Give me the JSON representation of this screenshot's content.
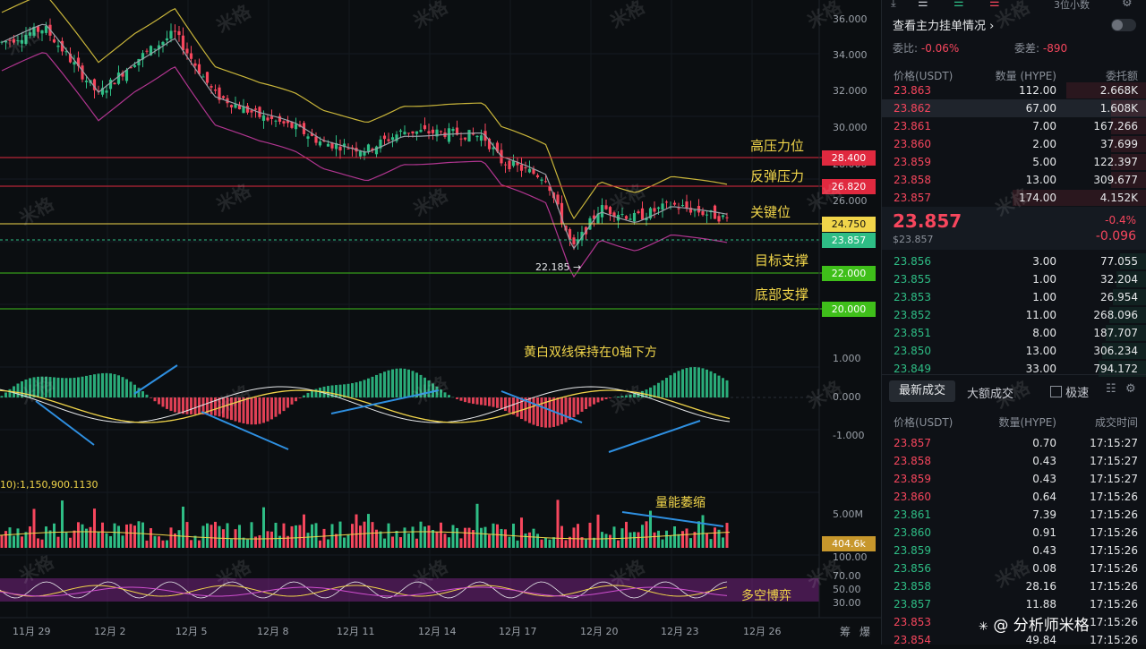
{
  "chart": {
    "y_axis_labels": [
      "36.000",
      "34.000",
      "32.000",
      "30.000",
      "28.000",
      "26.000",
      "20.000"
    ],
    "x_axis_labels": [
      "11月 29",
      "12月 2",
      "12月 5",
      "12月 8",
      "12月 11",
      "12月 14",
      "12月 17",
      "12月 20",
      "12月 23",
      "12月 26"
    ],
    "x_axis_right": [
      "筹",
      "爆"
    ],
    "levels": [
      {
        "label": "高压力位",
        "value": "28.400",
        "color": "#e0293f"
      },
      {
        "label": "反弹压力",
        "value": "26.820",
        "color": "#e0293f"
      },
      {
        "label": "关键位",
        "value": "24.750",
        "color": "#f1d54a"
      },
      {
        "label": "",
        "value": "23.857",
        "color": "#2ebd85"
      },
      {
        "label": "目标支撑",
        "value": "22.000",
        "color": "#3fbf1a"
      },
      {
        "label": "底部支撑",
        "value": "20.000",
        "color": "#3fbf1a"
      }
    ],
    "low_marker": "22.185 →",
    "macd_annotation": "黄白双线保持在0轴下方",
    "macd_axis": [
      "1.000",
      "0.000",
      "-1.000"
    ],
    "volume_title": "10):1,150,900.1130",
    "volume_annotation": "量能萎缩",
    "volume_axis": [
      "5.00M"
    ],
    "volume_tag": "404.6k",
    "volume_axis_bottom": "100.00",
    "rsi_axis": [
      "70.00",
      "50.00",
      "30.00"
    ],
    "rsi_annotation": "多空博弈",
    "watermark": "米格"
  },
  "panel": {
    "top_select": "3位小数",
    "title": "查看主力挂单情况",
    "weibi_label": "委比:",
    "weibi_value": "-0.06%",
    "weicha_label": "委差:",
    "weicha_value": "-890",
    "headers": {
      "price": "价格(USDT)",
      "qty": "数量 (HYPE)",
      "amt": "委托额"
    },
    "asks": [
      {
        "price": "23.863",
        "qty": "112.00",
        "amt": "2.668K"
      },
      {
        "price": "23.862",
        "qty": "67.00",
        "amt": "1.608K"
      },
      {
        "price": "23.861",
        "qty": "7.00",
        "amt": "167.266"
      },
      {
        "price": "23.860",
        "qty": "2.00",
        "amt": "37.699"
      },
      {
        "price": "23.859",
        "qty": "5.00",
        "amt": "122.397"
      },
      {
        "price": "23.858",
        "qty": "13.00",
        "amt": "309.677"
      },
      {
        "price": "23.857",
        "qty": "174.00",
        "amt": "4.152K"
      }
    ],
    "last_price": "23.857",
    "last_price_usd": "$23.857",
    "change_pct": "-0.4%",
    "change_abs": "-0.096",
    "bids": [
      {
        "price": "23.856",
        "qty": "3.00",
        "amt": "77.055"
      },
      {
        "price": "23.855",
        "qty": "1.00",
        "amt": "32.204"
      },
      {
        "price": "23.853",
        "qty": "1.00",
        "amt": "26.954"
      },
      {
        "price": "23.852",
        "qty": "11.00",
        "amt": "268.096"
      },
      {
        "price": "23.851",
        "qty": "8.00",
        "amt": "187.707"
      },
      {
        "price": "23.850",
        "qty": "13.00",
        "amt": "306.234"
      },
      {
        "price": "23.849",
        "qty": "33.00",
        "amt": "794.172"
      }
    ],
    "tabs": {
      "latest": "最新成交",
      "large": "大额成交",
      "speed": "极速"
    },
    "trade_headers": {
      "price": "价格(USDT)",
      "qty": "数量(HYPE)",
      "time": "成交时间"
    },
    "trades": [
      {
        "price": "23.857",
        "qty": "0.70",
        "time": "17:15:27",
        "side": "red"
      },
      {
        "price": "23.858",
        "qty": "0.43",
        "time": "17:15:27",
        "side": "red"
      },
      {
        "price": "23.859",
        "qty": "0.43",
        "time": "17:15:27",
        "side": "red"
      },
      {
        "price": "23.860",
        "qty": "0.64",
        "time": "17:15:26",
        "side": "red"
      },
      {
        "price": "23.861",
        "qty": "7.39",
        "time": "17:15:26",
        "side": "green"
      },
      {
        "price": "23.860",
        "qty": "0.91",
        "time": "17:15:26",
        "side": "green"
      },
      {
        "price": "23.859",
        "qty": "0.43",
        "time": "17:15:26",
        "side": "green"
      },
      {
        "price": "23.856",
        "qty": "0.08",
        "time": "17:15:26",
        "side": "green"
      },
      {
        "price": "23.858",
        "qty": "28.16",
        "time": "17:15:26",
        "side": "green"
      },
      {
        "price": "23.857",
        "qty": "11.88",
        "time": "17:15:26",
        "side": "green"
      },
      {
        "price": "23.853",
        "qty": "",
        "time": "17:15:26",
        "side": "red"
      },
      {
        "price": "23.854",
        "qty": "49.84",
        "time": "17:15:26",
        "side": "red"
      }
    ],
    "footer_brand": "@ 分析师米格"
  }
}
